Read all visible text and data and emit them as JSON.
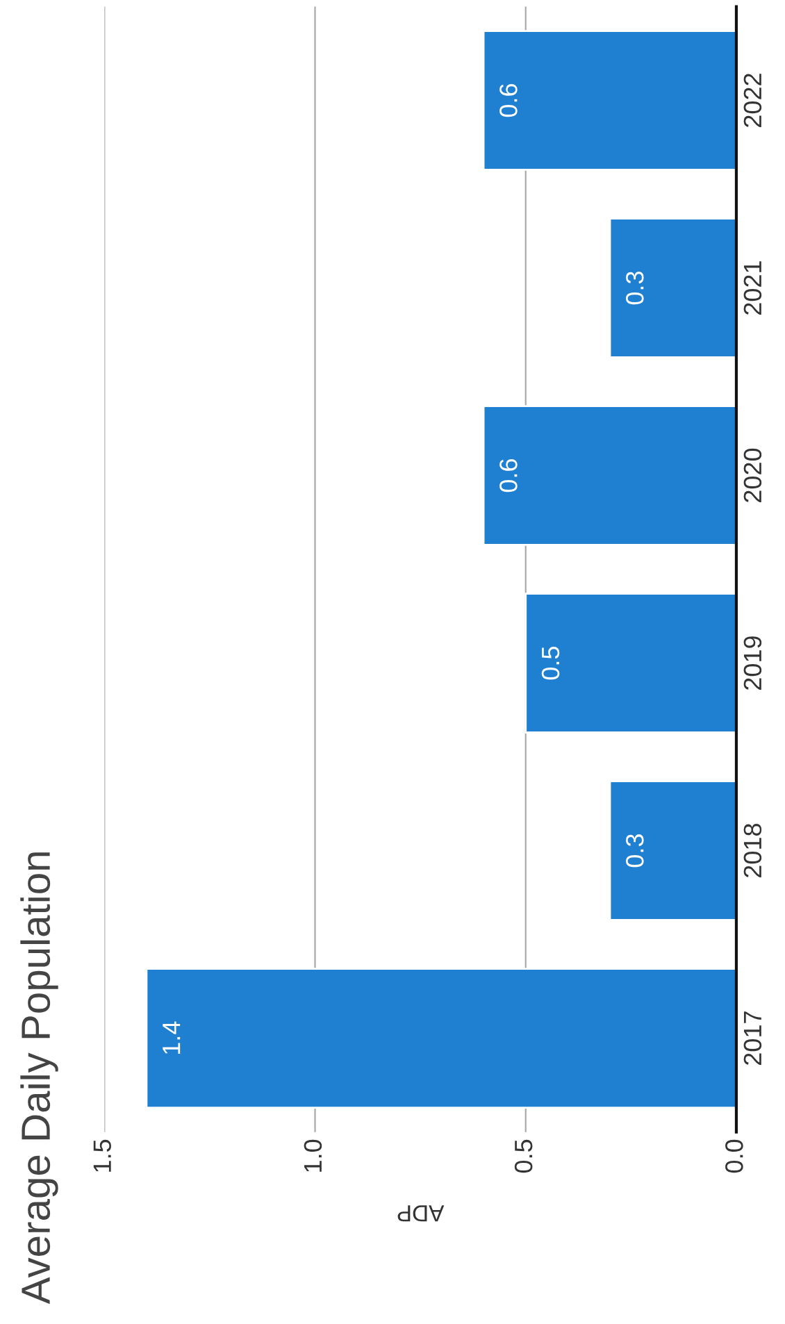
{
  "chart_data": {
    "type": "bar",
    "orientation": "horizontal",
    "title": "Average Daily Population",
    "xlabel": "ADP",
    "categories": [
      "2022",
      "2021",
      "2020",
      "2019",
      "2018",
      "2017"
    ],
    "values": [
      0.6,
      0.3,
      0.6,
      0.5,
      0.3,
      1.4
    ],
    "color": "#1f7fd1",
    "xlim": [
      1.5,
      0
    ],
    "xticks": [
      {
        "value": 0,
        "label": "0.0"
      },
      0.5,
      {
        "value": 1,
        "label": "1.0"
      },
      1.5
    ],
    "grid": "x",
    "data_labels": true
  }
}
